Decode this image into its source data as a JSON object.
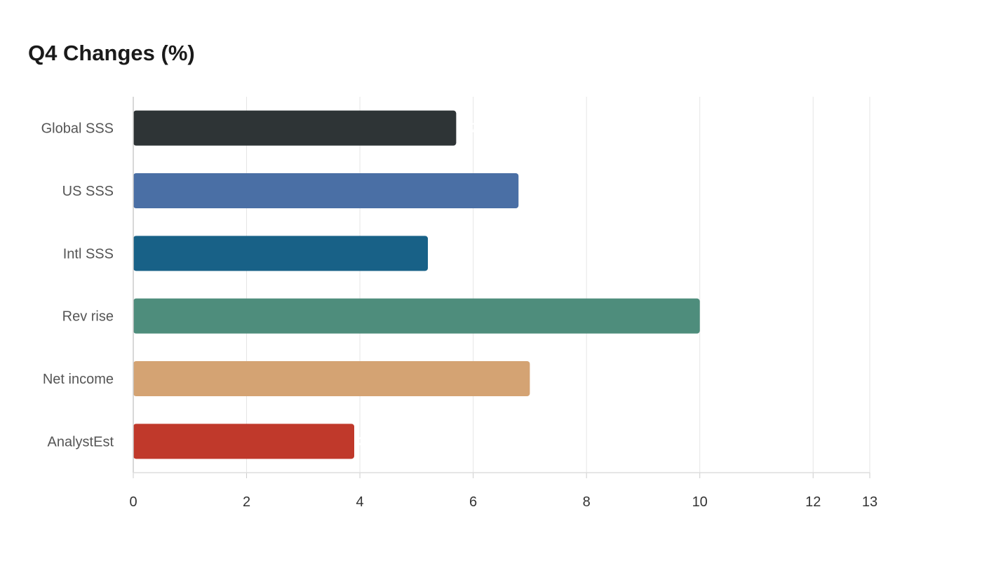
{
  "chart_data": {
    "type": "bar",
    "orientation": "horizontal",
    "title": "Q4 Changes (%)",
    "categories": [
      "Global SSS",
      "US SSS",
      "Intl SSS",
      "Rev rise",
      "Net income",
      "AnalystEst"
    ],
    "values": [
      5.7,
      6.8,
      5.2,
      10,
      7,
      3.9
    ],
    "colors": [
      "#2e3436",
      "#4a6fa5",
      "#186187",
      "#4e8d7c",
      "#d4a373",
      "#c0392b"
    ],
    "xlim": [
      0,
      13
    ],
    "xticks": [
      0,
      2,
      4,
      6,
      8,
      10,
      12,
      13
    ],
    "grid": true,
    "legend": false
  }
}
